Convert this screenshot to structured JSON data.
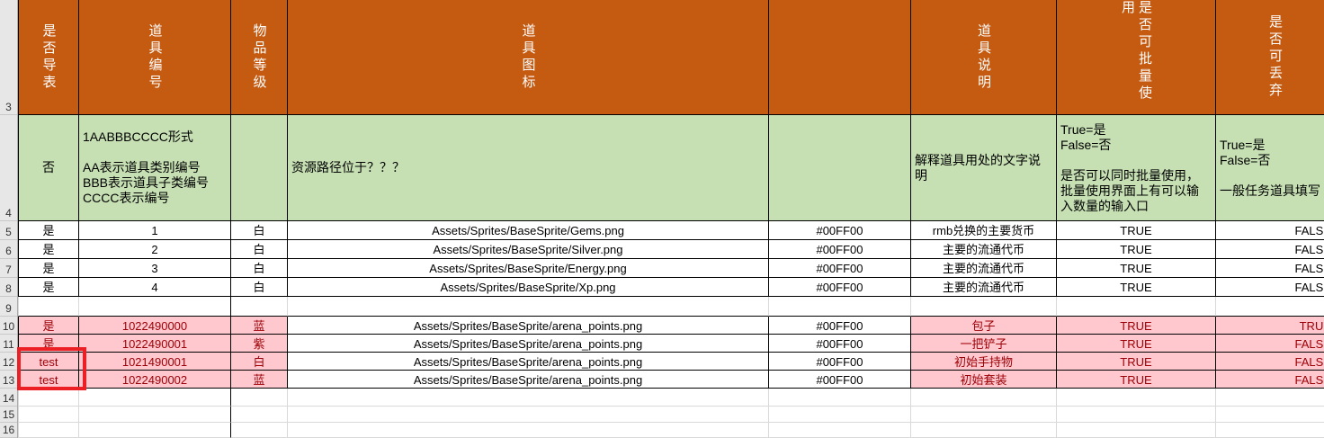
{
  "sheet": {
    "header_row": {
      "num": "3",
      "labels": [
        "是否导表",
        "道具编号",
        "物品等级",
        "道具图标",
        "",
        "道具说明",
        "是否可批量使用",
        "是否可丢弃"
      ]
    },
    "notes_row": {
      "num": "4",
      "cells": [
        "否",
        "1AABBBCCCC形式\n\nAA表示道具类别编号\nBBB表示道具子类编号\nCCCC表示编号",
        "",
        "资源路径位于？？？",
        "",
        "解释道具用处的文字说\n明",
        "True=是\nFalse=否\n\n是否可以同时批量使用，\n批量使用界面上有可以输\n入数量的输入口",
        "True=是\nFalse=否\n\n一般任务道具填写"
      ]
    },
    "data_rows": [
      {
        "num": "5",
        "cells": [
          "是",
          "1",
          "白",
          "Assets/Sprites/BaseSprite/Gems.png",
          "#00FF00",
          "rmb兑换的主要货币",
          "TRUE",
          "FALSE"
        ]
      },
      {
        "num": "6",
        "cells": [
          "是",
          "2",
          "白",
          "Assets/Sprites/BaseSprite/Silver.png",
          "#00FF00",
          "主要的流通代币",
          "TRUE",
          "FALSE"
        ]
      },
      {
        "num": "7",
        "cells": [
          "是",
          "3",
          "白",
          "Assets/Sprites/BaseSprite/Energy.png",
          "#00FF00",
          "主要的流通代币",
          "TRUE",
          "FALSE"
        ]
      },
      {
        "num": "8",
        "cells": [
          "是",
          "4",
          "白",
          "Assets/Sprites/BaseSprite/Xp.png",
          "#00FF00",
          "主要的流通代币",
          "TRUE",
          "FALSE"
        ]
      },
      {
        "num": "9",
        "cells": [
          "",
          "",
          "",
          "",
          "",
          "",
          "",
          ""
        ]
      },
      {
        "num": "10",
        "cells": [
          "是",
          "1022490000",
          "蓝",
          "Assets/Sprites/BaseSprite/arena_points.png",
          "#00FF00",
          "包子",
          "TRUE",
          "TRUE"
        ]
      },
      {
        "num": "11",
        "cells": [
          "是",
          "1022490001",
          "紫",
          "Assets/Sprites/BaseSprite/arena_points.png",
          "#00FF00",
          "一把铲子",
          "TRUE",
          "FALSE"
        ]
      },
      {
        "num": "12",
        "cells": [
          "test",
          "1021490001",
          "白",
          "Assets/Sprites/BaseSprite/arena_points.png",
          "#00FF00",
          "初始手持物",
          "TRUE",
          "FALSE"
        ]
      },
      {
        "num": "13",
        "cells": [
          "test",
          "1022490002",
          "蓝",
          "Assets/Sprites/BaseSprite/arena_points.png",
          "#00FF00",
          "初始套装",
          "TRUE",
          "FALSE"
        ]
      },
      {
        "num": "14",
        "cells": [
          "",
          "",
          "",
          "",
          "",
          "",
          "",
          ""
        ]
      },
      {
        "num": "15",
        "cells": [
          "",
          "",
          "",
          "",
          "",
          "",
          "",
          ""
        ]
      },
      {
        "num": "16",
        "cells": [
          "",
          "",
          "",
          "",
          "",
          "",
          "",
          ""
        ]
      }
    ],
    "selection": {
      "location": "A12:A13",
      "values": [
        "test",
        "test"
      ]
    },
    "colors": {
      "header_bg": "#C55A11",
      "header_text": "#FFFFFF",
      "notes_bg": "#C6E0B4",
      "pink_bg": "#FFC7CE",
      "pink_text": "#9C0006",
      "cell_text": "#000000",
      "selection_border": "#EC2024",
      "gridline": "#D9D9D9",
      "row_header_bg": "#E7E7E7"
    }
  }
}
